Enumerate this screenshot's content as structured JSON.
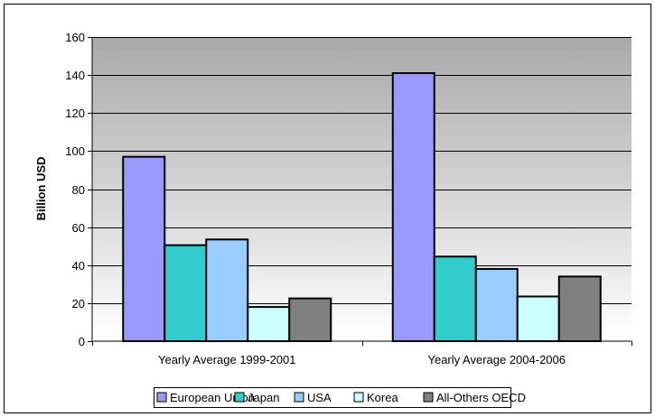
{
  "chart_data": {
    "type": "bar",
    "title": "",
    "xlabel": "",
    "ylabel": "Billion USD",
    "ylim": [
      0,
      160
    ],
    "yticks": [
      0,
      20,
      40,
      60,
      80,
      100,
      120,
      140,
      160
    ],
    "categories": [
      "Yearly Average 1999-2001",
      "Yearly Average 2004-2006"
    ],
    "series": [
      {
        "name": "European Union",
        "color": "#9999ff",
        "values": [
          97,
          141
        ]
      },
      {
        "name": "Japan",
        "color": "#33cccc",
        "values": [
          50.5,
          44.5
        ]
      },
      {
        "name": "USA",
        "color": "#99ccff",
        "values": [
          53.5,
          38
        ]
      },
      {
        "name": "Korea",
        "color": "#ccffff",
        "values": [
          18,
          23.5
        ]
      },
      {
        "name": "All-Others OECD",
        "color": "#808080",
        "values": [
          22.5,
          34
        ]
      }
    ],
    "grid": true,
    "legend": "bottom"
  }
}
